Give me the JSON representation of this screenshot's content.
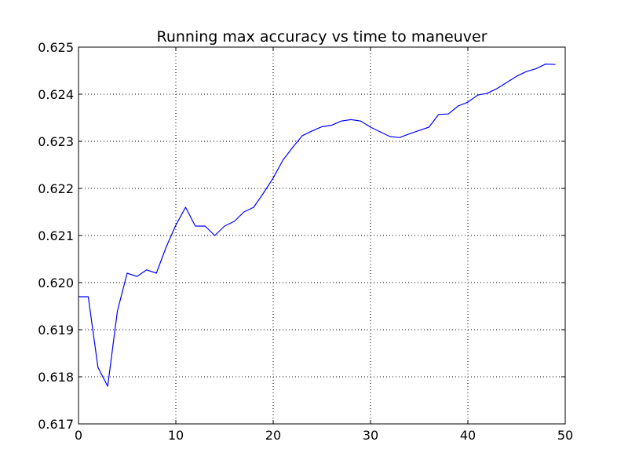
{
  "chart_data": {
    "type": "line",
    "title": "Running max accuracy vs time to maneuver",
    "xlabel": "",
    "ylabel": "",
    "xlim": [
      0,
      50
    ],
    "ylim": [
      0.617,
      0.625
    ],
    "x_ticks": [
      0,
      10,
      20,
      30,
      40,
      50
    ],
    "y_ticks": [
      0.617,
      0.618,
      0.619,
      0.62,
      0.621,
      0.622,
      0.623,
      0.624,
      0.625
    ],
    "x_tick_labels": [
      "0",
      "10",
      "20",
      "30",
      "40",
      "50"
    ],
    "y_tick_labels": [
      "0.617",
      "0.618",
      "0.619",
      "0.620",
      "0.621",
      "0.622",
      "0.623",
      "0.624",
      "0.625"
    ],
    "grid": true,
    "series": [
      {
        "color": "#0000ff",
        "x": [
          0,
          1,
          2,
          3,
          4,
          5,
          6,
          7,
          8,
          9,
          10,
          11,
          12,
          13,
          14,
          15,
          16,
          17,
          18,
          19,
          20,
          21,
          22,
          23,
          24,
          25,
          26,
          27,
          28,
          29,
          30,
          31,
          32,
          33,
          34,
          35,
          36,
          37,
          38,
          39,
          40,
          41,
          42,
          43,
          44,
          45,
          46,
          47,
          48,
          49
        ],
        "y": [
          0.6197,
          0.6197,
          0.6182,
          0.6178,
          0.6194,
          0.6202,
          0.62013,
          0.62027,
          0.6202,
          0.62075,
          0.62122,
          0.6216,
          0.6212,
          0.6212,
          0.621,
          0.6212,
          0.6213,
          0.6215,
          0.6216,
          0.6219,
          0.62222,
          0.6226,
          0.62287,
          0.62312,
          0.62322,
          0.62331,
          0.62334,
          0.62343,
          0.62346,
          0.62343,
          0.6233,
          0.6232,
          0.6231,
          0.62308,
          0.62316,
          0.62323,
          0.6233,
          0.62357,
          0.62358,
          0.62375,
          0.62383,
          0.62398,
          0.62402,
          0.62412,
          0.62425,
          0.62438,
          0.62448,
          0.62454,
          0.62464,
          0.62463
        ]
      }
    ]
  }
}
